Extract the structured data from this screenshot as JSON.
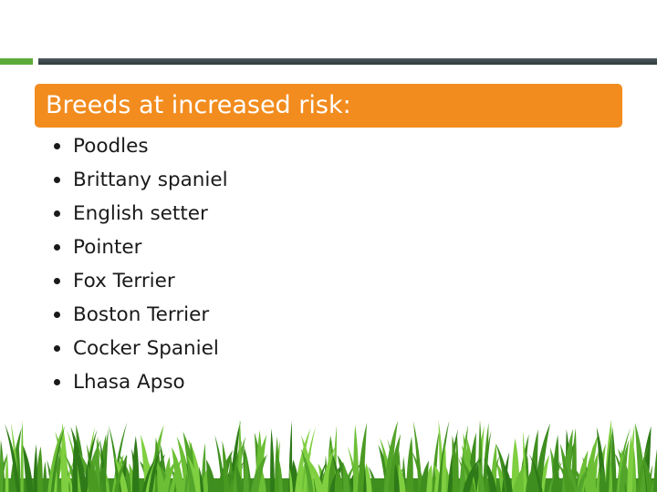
{
  "heading": "Breeds at increased risk:",
  "bullets": [
    "Poodles",
    "Brittany spaniel",
    "English setter",
    "Pointer",
    "Fox Terrier",
    "Boston Terrier",
    "Cocker Spaniel",
    "Lhasa Apso"
  ]
}
